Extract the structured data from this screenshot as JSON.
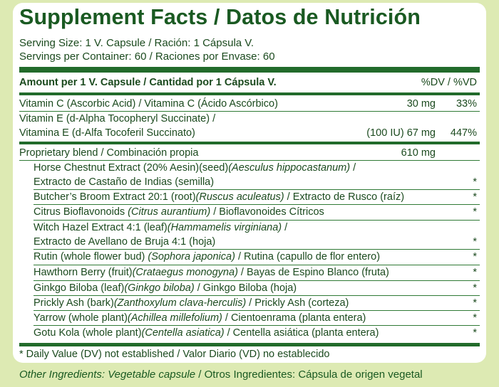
{
  "title": "Supplement Facts / Datos de Nutrición",
  "serving_size": "Serving Size: 1 V. Capsule / Ración: 1 Cápsula V.",
  "servings_per_container": "Servings per Container: 60 / Raciones por Envase: 60",
  "header": {
    "amount": "Amount per 1 V. Capsule / Cantidad por 1 Cápsula V.",
    "dv": "%DV / %VD"
  },
  "vitamin_c": {
    "name": "Vitamin C (Ascorbic Acid) / Vitamina C (Ácido Ascórbico)",
    "amount": "30 mg",
    "dv": "33%"
  },
  "vitamin_e": {
    "line1": "Vitamin E (d-Alpha Tocopheryl Succinate) /",
    "line2": "Vitamina E (d-Alfa Tocoferil Succinato)",
    "amount": "(100 IU) 67 mg",
    "dv": "447%"
  },
  "blend": {
    "name": "Proprietary blend / Combinación propia",
    "amount": "610 mg"
  },
  "ingredients": {
    "horse_chestnut": {
      "a": "Horse Chestnut Extract (20% Aesin)(seed)",
      "latin": "(Aesculus hippocastanum)",
      "b": " /",
      "line2": "Extracto de Castaño de Indias (semilla)",
      "dv": "*"
    },
    "butchers_broom": {
      "a": "Butcher’s Broom Extract 20:1 (root)",
      "latin": "(Ruscus aculeatus)",
      "b": " / Extracto de Rusco (raíz)",
      "dv": "*"
    },
    "citrus": {
      "a": "Citrus Bioflavonoids ",
      "latin": "(Citrus aurantium)",
      "b": " / Bioflavonoides Cítricos",
      "dv": "*"
    },
    "witch_hazel": {
      "a": "Witch Hazel Extract 4:1 (leaf)",
      "latin": "(Hammamelis virginiana)",
      "b": " /",
      "line2": "Extracto de Avellano de Bruja 4:1 (hoja)",
      "dv": "*"
    },
    "rutin": {
      "a": "Rutin (whole flower bud) ",
      "latin": "(Sophora japonica)",
      "b": " / Rutina (capullo de flor entero)",
      "dv": "*"
    },
    "hawthorn": {
      "a": "Hawthorn Berry (fruit)",
      "latin": "(Crataegus monogyna)",
      "b": " / Bayas de Espino Blanco (fruta)",
      "dv": "*"
    },
    "ginkgo": {
      "a": "Ginkgo Biloba (leaf)",
      "latin": "(Ginkgo biloba)",
      "b": " / Ginkgo Biloba (hoja)",
      "dv": "*"
    },
    "prickly_ash": {
      "a": "Prickly Ash (bark)",
      "latin": "(Zanthoxylum clava-herculis)",
      "b": " / Prickly Ash (corteza)",
      "dv": "*"
    },
    "yarrow": {
      "a": "Yarrow (whole plant)",
      "latin": "(Achillea millefolium)",
      "b": " / Cientoenrama (planta entera)",
      "dv": "*"
    },
    "gotu_kola": {
      "a": "Gotu Kola (whole plant)",
      "latin": "(Centella asiatica)",
      "b": " / Centella asiática (planta entera)",
      "dv": "*"
    }
  },
  "footnote": "* Daily Value (DV) not established / Valor Diario (VD) no establecido",
  "other_ingredients": {
    "label": "Other Ingredients: Vegetable capsule",
    "rest": " / Otros Ingredientes: Cápsula de origen vegetal"
  },
  "colors": {
    "background": "#ddeab3",
    "text": "#1b4a1e",
    "rule": "#226b2b"
  }
}
